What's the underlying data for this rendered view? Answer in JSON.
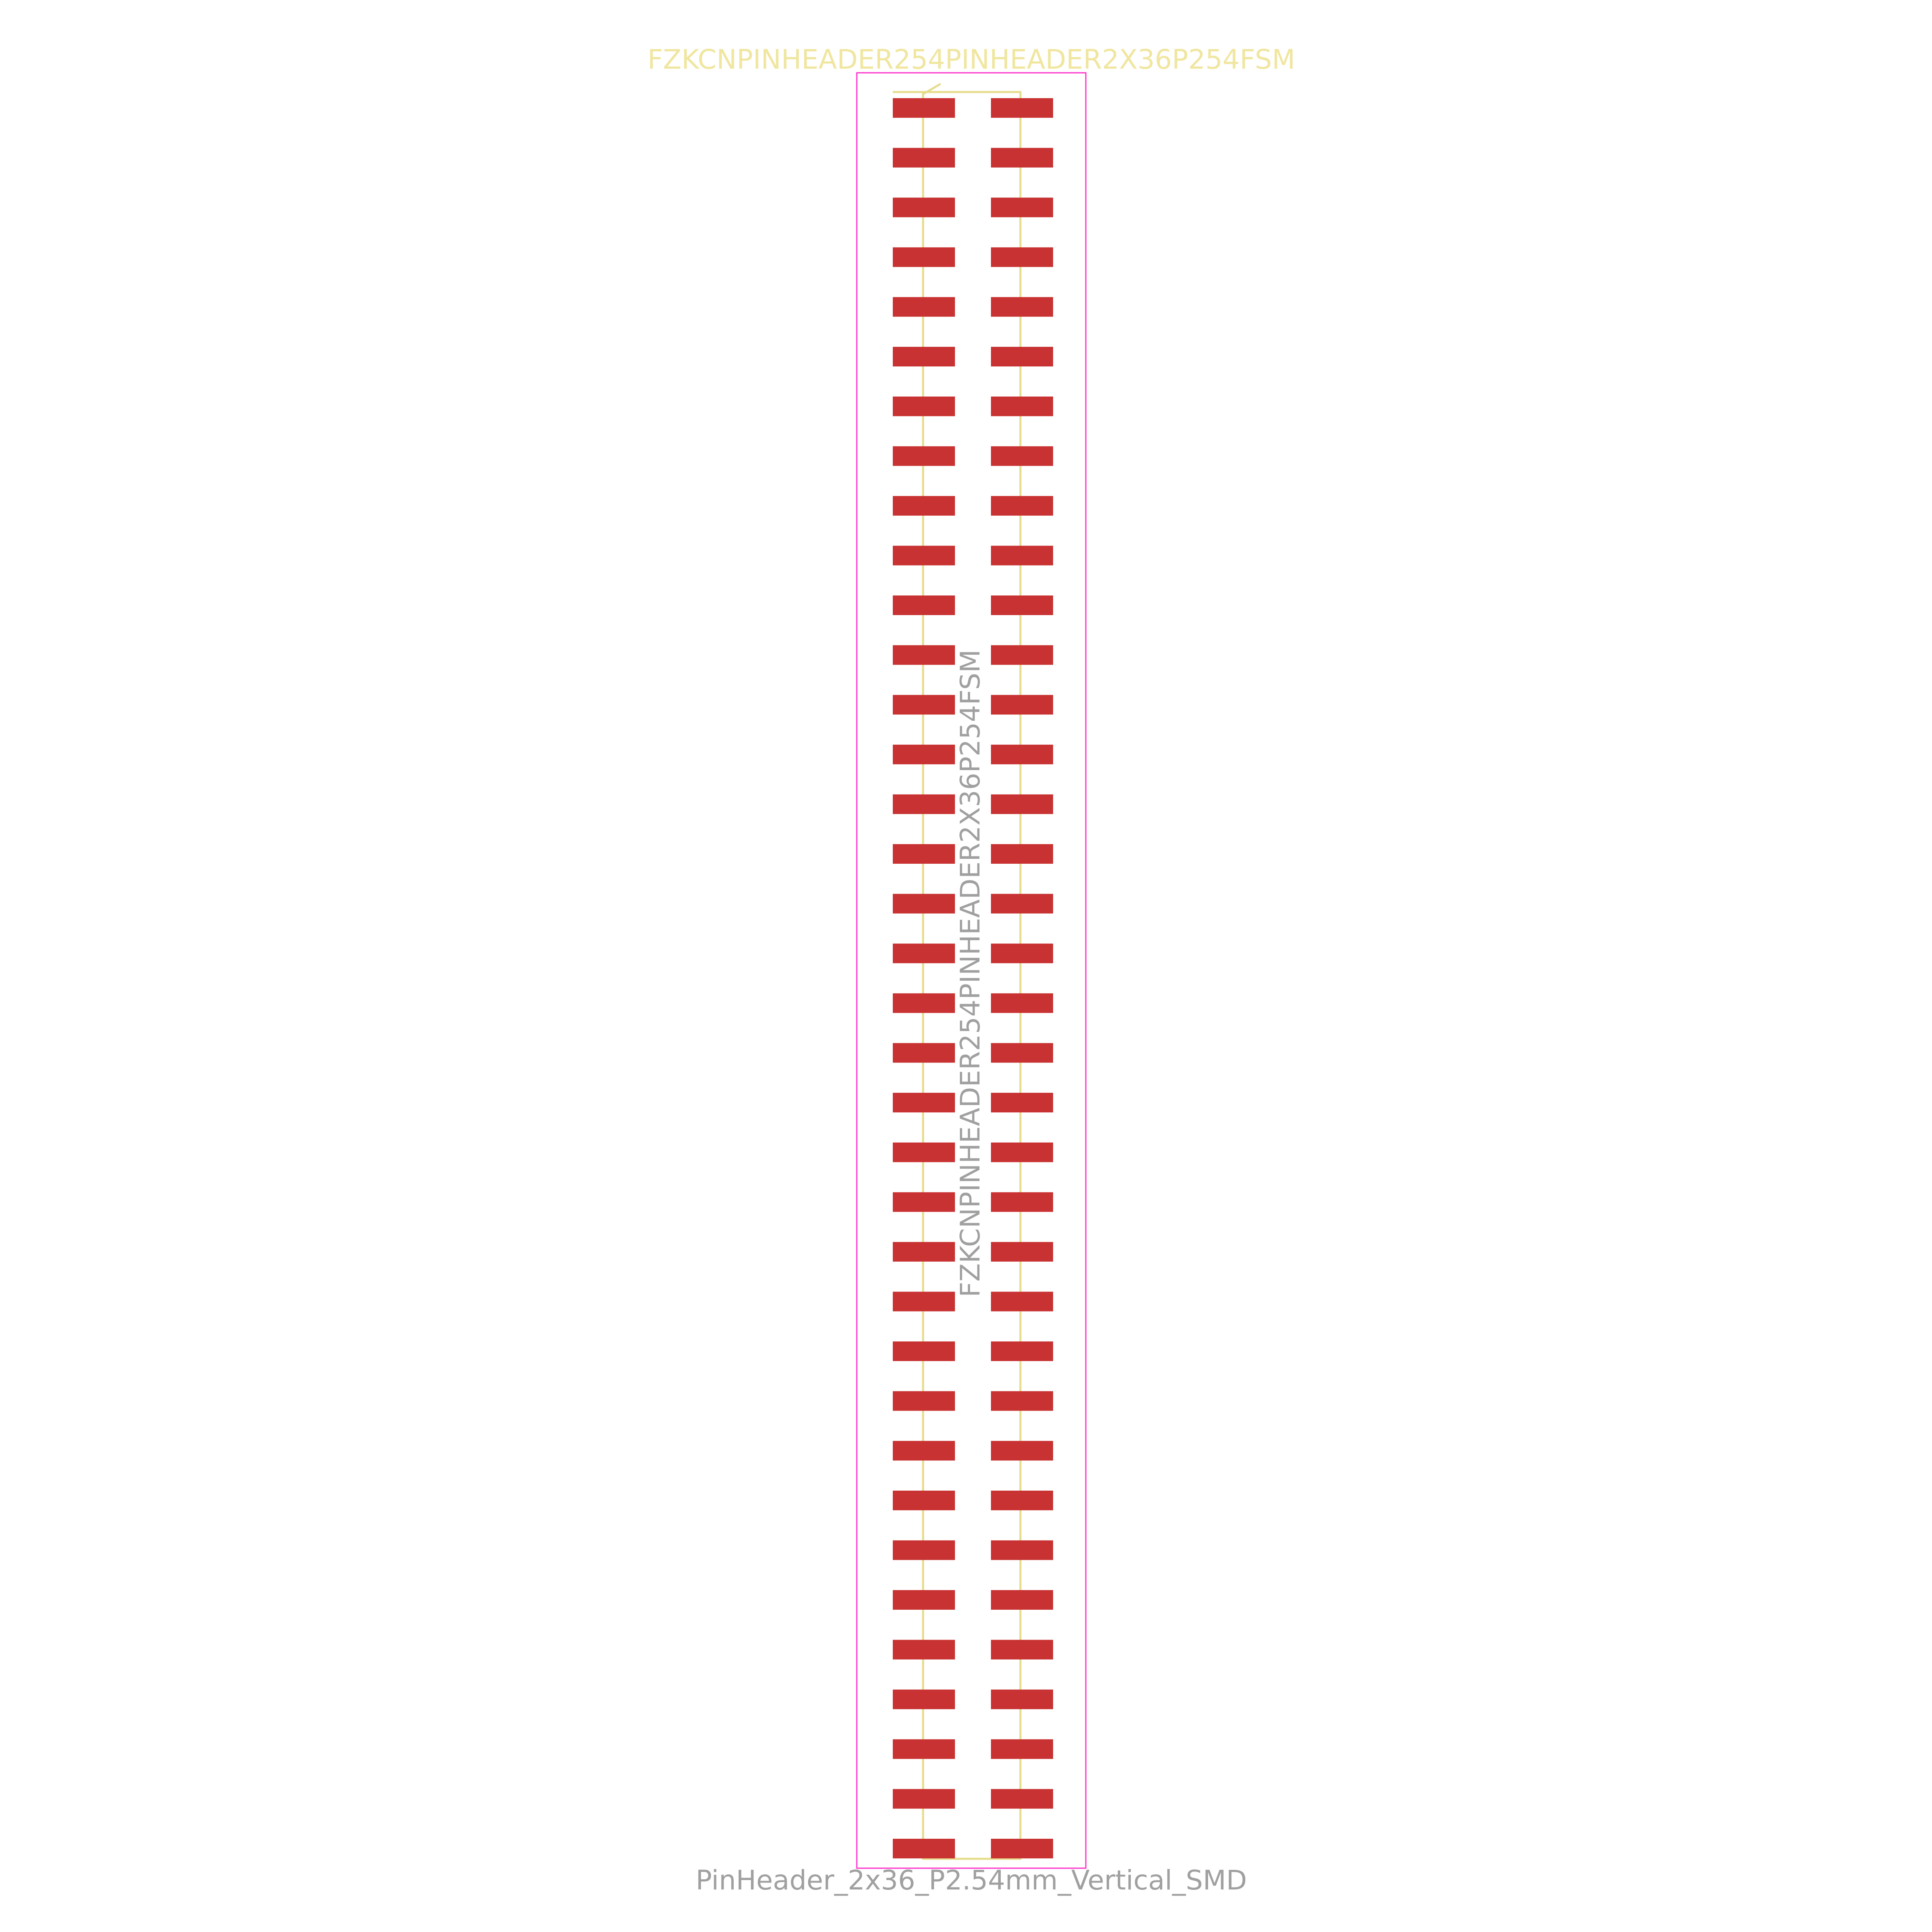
{
  "footprint": {
    "value_label": "FZKCNPINHEADER254PINHEADER2X36P254FSM",
    "reference_label": "FZKCNPINHEADER254PINHEADER2X36P254FSM",
    "name_label": "PinHeader_2x36_P2.54mm_Vertical_SMD",
    "pin_rows": 36,
    "pin_columns": 2
  },
  "colors": {
    "background": "#ffffff",
    "courtyard": "#ff33cc",
    "silkscreen": "#e6dc8c",
    "silk_text": "#f0e6a0",
    "pad": "#c83232",
    "fab_text": "#a0a0a0"
  }
}
